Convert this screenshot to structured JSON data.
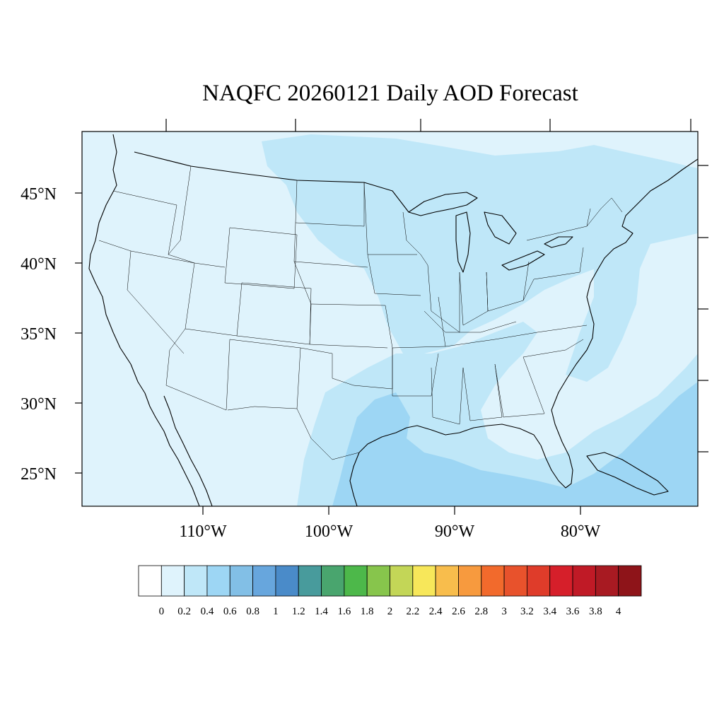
{
  "title": "NAQFC 20260121 Daily AOD Forecast",
  "lat_labels": [
    "45°N",
    "40°N",
    "35°N",
    "30°N",
    "25°N"
  ],
  "lon_labels": [
    "110°W",
    "100°W",
    "90°W",
    "80°W"
  ],
  "colorbar": {
    "labels": [
      "0",
      "0.2",
      "0.4",
      "0.6",
      "0.8",
      "1",
      "1.2",
      "1.4",
      "1.6",
      "1.8",
      "2",
      "2.2",
      "2.4",
      "2.6",
      "2.8",
      "3",
      "3.2",
      "3.4",
      "3.6",
      "3.8",
      "4"
    ],
    "colors": [
      "#ffffff",
      "#dff3fc",
      "#bfe7f8",
      "#9dd6f4",
      "#82bfe6",
      "#67a6dd",
      "#4a8bc9",
      "#489b9c",
      "#49a56e",
      "#4db84a",
      "#87c54c",
      "#c3d657",
      "#f7e75a",
      "#f8bd4c",
      "#f79a3e",
      "#f26a2c",
      "#e8522c",
      "#df3c2a",
      "#d61f2a",
      "#c01a26",
      "#a81a22",
      "#8e1419"
    ]
  },
  "colors": {
    "background_aod": "#dff3fc",
    "aod_0_4": "#bfe7f8",
    "aod_0_6": "#9dd6f4"
  }
}
